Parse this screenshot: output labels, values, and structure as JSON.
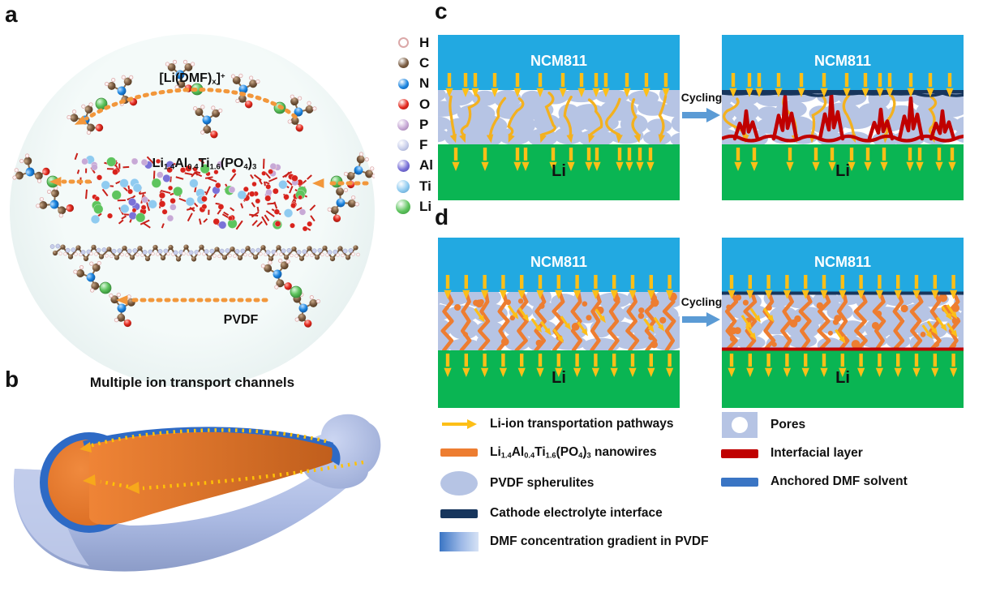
{
  "figure": {
    "panel_a": {
      "label": "a",
      "pvdf_label": "PVDF",
      "caption": "Multiple ion transport channels"
    },
    "panel_b": {
      "label": "b"
    },
    "panel_c": {
      "label": "c",
      "cycling": "Cycling"
    },
    "panel_d": {
      "label": "d",
      "cycling": "Cycling"
    },
    "cathode_label": "NCM811",
    "anode_label": "Li"
  },
  "formulas": {
    "li_dmf": [
      "[Li(DMF)",
      "x",
      "]",
      "+"
    ],
    "latp": [
      "Li",
      "1.4",
      "Al",
      "0.4",
      "Ti",
      "1.6",
      "(PO",
      "4",
      ")",
      "3"
    ]
  },
  "atom_legend": [
    {
      "symbol": "H",
      "color": "#ffffff",
      "edge": "#dba8a8",
      "size": 9,
      "hollow": true
    },
    {
      "symbol": "C",
      "color": "#7a5c42",
      "edge": "#53381f",
      "size": 13
    },
    {
      "symbol": "N",
      "color": "#1c86e0",
      "edge": "#0d55a0",
      "size": 13
    },
    {
      "symbol": "O",
      "color": "#e42a1f",
      "edge": "#9c150d",
      "size": 13
    },
    {
      "symbol": "P",
      "color": "#c7a9d6",
      "edge": "#94739f",
      "size": 14
    },
    {
      "symbol": "F",
      "color": "#c9cfeb",
      "edge": "#959dc4",
      "size": 14
    },
    {
      "symbol": "Al",
      "color": "#7a72d8",
      "edge": "#4c44a8",
      "size": 15
    },
    {
      "symbol": "Ti",
      "color": "#8fcbf0",
      "edge": "#5595c4",
      "size": 16
    },
    {
      "symbol": "Li",
      "color": "#5ec45e",
      "edge": "#358f38",
      "size": 18
    }
  ],
  "legend": {
    "li_ion_pathways": "Li-ion transportation pathways",
    "latp_nanowires_suffix": " nanowires",
    "pvdf_spherulites": "PVDF spherulites",
    "cei": "Cathode electrolyte interface",
    "dmf_gradient": "DMF concentration gradient in PVDF",
    "pores": "Pores",
    "interfacial_layer": "Interfacial layer",
    "anchored_dmf": "Anchored DMF solvent"
  },
  "colors": {
    "cathode_blue": "#22a9e1",
    "anode_green": "#0ab553",
    "spherulite": "#b6c4e4",
    "pathway_yellow": "#fdbf17",
    "squiggle_yellow": "#f3b11f",
    "nanowire_orange": "#ed7d31",
    "interfacial_red": "#c00000",
    "cei_navy": "#17365d",
    "anchored_dmf_blue": "#3a75c4",
    "cycling_arrow": "#5b9bd5",
    "dashed_arrow_orange": "#f2973b"
  }
}
